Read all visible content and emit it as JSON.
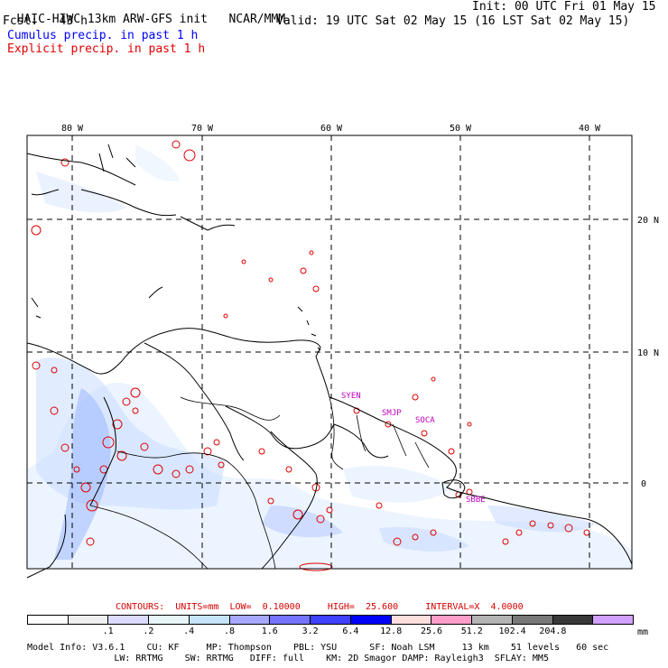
{
  "header": {
    "model": "HAIC-HIWC 13km ARW-GFS init",
    "org": "NCAR/MMM",
    "init": "Init: 00 UTC Fri 01 May 15",
    "fcst_label": "Fcst:",
    "fcst_value": "43 h",
    "valid": "Valid: 19 UTC Sat 02 May 15 (16 LST Sat 02 May 15)",
    "cumulus": "Cumulus precip. in past 1 h",
    "explicit": "Explicit precip. in past 1 h"
  },
  "map": {
    "lon_labels": [
      "80 W",
      "70 W",
      "60 W",
      "50 W",
      "40 W"
    ],
    "lat_labels": [
      "20 N",
      "10 N",
      "0"
    ],
    "stations": [
      "SYEN",
      "SMJP",
      "SOCA",
      "SBBE"
    ]
  },
  "contours": {
    "label": "CONTOURS:",
    "units": "UNITS=mm",
    "low": "LOW=  0.10000",
    "high": "HIGH=  25.600",
    "interval": "INTERVAL=X  4.0000"
  },
  "colorbar": {
    "colors": [
      "#ffffff",
      "#f0f0f0",
      "#dcdcff",
      "#e8f6fa",
      "#c6e4f8",
      "#a8a8ff",
      "#7474ff",
      "#4040ff",
      "#0000ff",
      "#ffdede",
      "#ff9ec8",
      "#b4b4b4",
      "#787878",
      "#383838",
      "#d2a0ff"
    ],
    "labels": [
      ".1",
      ".2",
      ".4",
      ".8",
      "1.6",
      "3.2",
      "6.4",
      "12.8",
      "25.6",
      "51.2",
      "102.4",
      "204.8"
    ],
    "units": "mm"
  },
  "footer": {
    "line1": "Model Info: V3.6.1    CU: KF     MP: Thompson    PBL: YSU      SF: Noah LSM     13 km    51 levels   60 sec",
    "line2": "                LW: RRTMG    SW: RRTMG   DIFF: full    KM: 2D Smagor DAMP: Rayleigh3  SFLAY: MM5"
  }
}
